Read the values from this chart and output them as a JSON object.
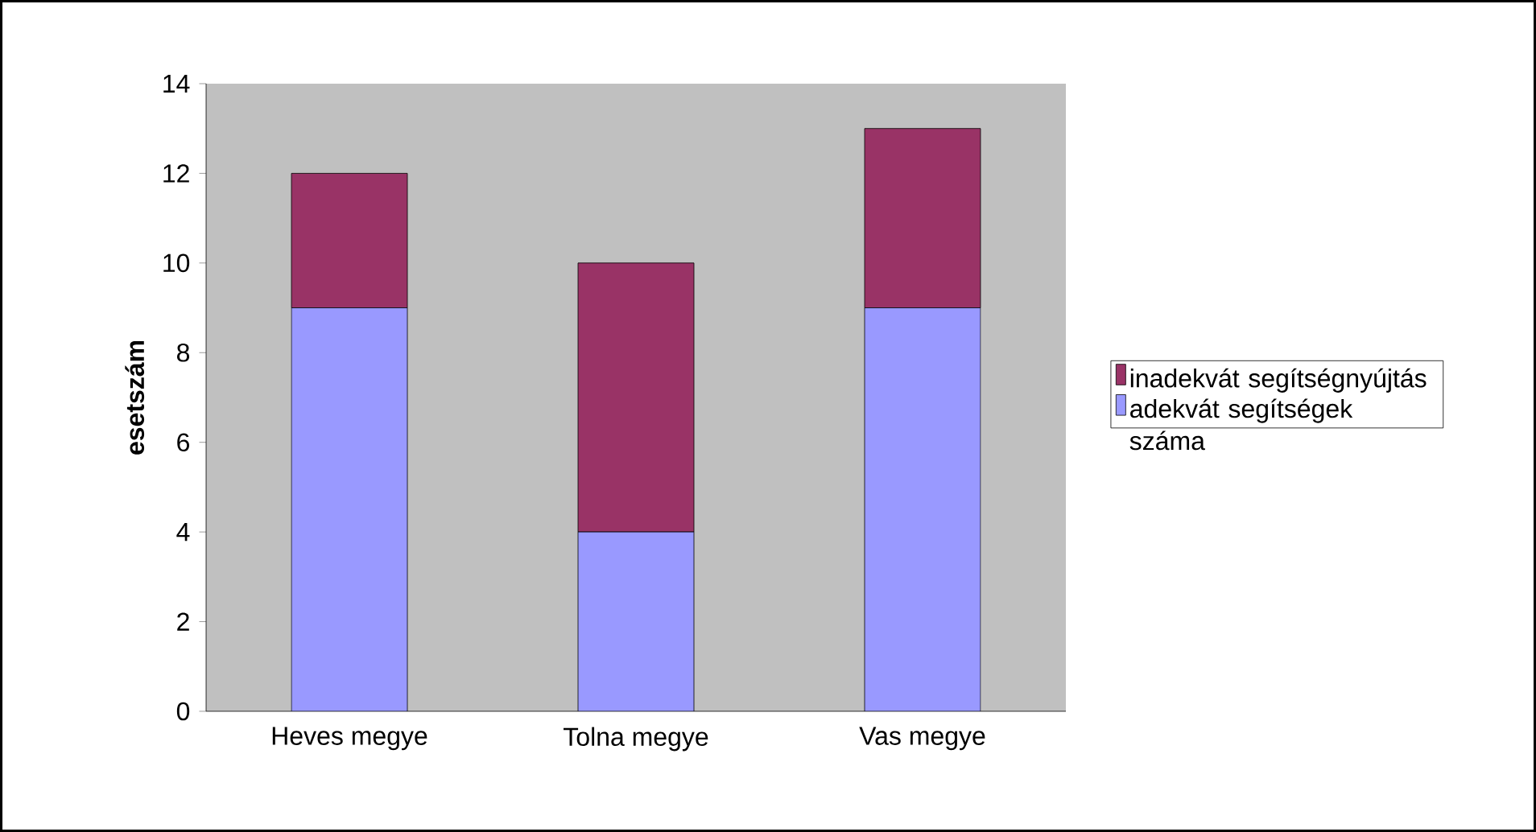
{
  "chart_data": {
    "type": "bar",
    "stacked": true,
    "ylabel": "esetszám",
    "categories": [
      "Heves megye",
      "Tolna megye",
      "Vas megye"
    ],
    "series": [
      {
        "name": "adekvát segítségek száma",
        "color": "#9999ff",
        "values": [
          9,
          4,
          9
        ]
      },
      {
        "name": "inadekvát segítségnyújtás",
        "color": "#993366",
        "values": [
          3,
          6,
          4
        ]
      }
    ],
    "ylim": [
      0,
      14
    ],
    "yticks": [
      0,
      2,
      4,
      6,
      8,
      10,
      12,
      14
    ],
    "grid": false,
    "legend": "right"
  }
}
